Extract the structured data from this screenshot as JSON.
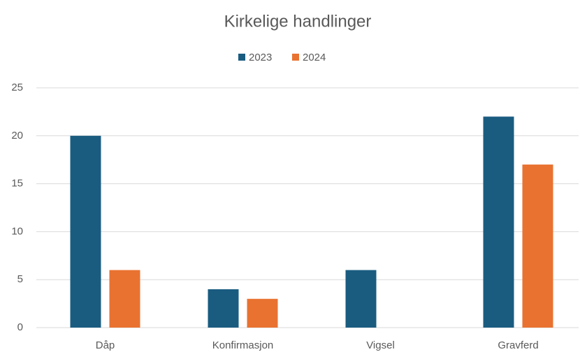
{
  "chart_data": {
    "type": "bar",
    "title": "Kirkelige handlinger",
    "categories": [
      "Dåp",
      "Konfirmasjon",
      "Vigsel",
      "Gravferd"
    ],
    "series": [
      {
        "name": "2023",
        "color": "#1a5c80",
        "values": [
          20,
          4,
          6,
          22
        ]
      },
      {
        "name": "2024",
        "color": "#e97230",
        "values": [
          6,
          3,
          0,
          17
        ]
      }
    ],
    "ylim": [
      0,
      25
    ],
    "yticks": [
      0,
      5,
      10,
      15,
      20,
      25
    ],
    "grid": true,
    "legend": "top"
  }
}
